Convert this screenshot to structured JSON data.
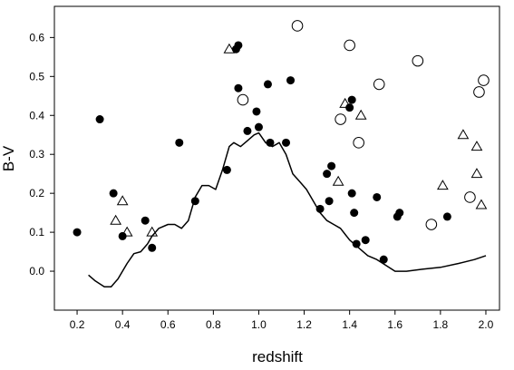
{
  "chart_data": {
    "type": "scatter",
    "title": "",
    "xlabel": "redshift",
    "ylabel": "B-V",
    "xlim": [
      0.1,
      2.06
    ],
    "ylim": [
      -0.1,
      0.68
    ],
    "xticks": [
      0.2,
      0.4,
      0.6,
      0.8,
      1.0,
      1.2,
      1.4,
      1.6,
      1.8,
      2.0
    ],
    "xtick_labels": [
      "0.2",
      "0.4",
      "0.6",
      "0.8",
      "1.0",
      "1.2",
      "1.4",
      "1.6",
      "1.8",
      "2.0"
    ],
    "yticks": [
      0.0,
      0.1,
      0.2,
      0.3,
      0.4,
      0.5,
      0.6
    ],
    "ytick_labels": [
      "0.0",
      "0.1",
      "0.2",
      "0.3",
      "0.4",
      "0.5",
      "0.6"
    ],
    "grid": false,
    "legend": "none",
    "series": [
      {
        "marker": "filled-circle",
        "points": [
          [
            0.2,
            0.1
          ],
          [
            0.3,
            0.39
          ],
          [
            0.36,
            0.2
          ],
          [
            0.4,
            0.09
          ],
          [
            0.5,
            0.13
          ],
          [
            0.53,
            0.06
          ],
          [
            0.65,
            0.33
          ],
          [
            0.72,
            0.18
          ],
          [
            0.86,
            0.26
          ],
          [
            0.9,
            0.57
          ],
          [
            0.91,
            0.58
          ],
          [
            0.91,
            0.47
          ],
          [
            0.95,
            0.36
          ],
          [
            0.99,
            0.41
          ],
          [
            1.0,
            0.37
          ],
          [
            1.04,
            0.48
          ],
          [
            1.05,
            0.33
          ],
          [
            1.12,
            0.33
          ],
          [
            1.14,
            0.49
          ],
          [
            1.27,
            0.16
          ],
          [
            1.3,
            0.25
          ],
          [
            1.31,
            0.18
          ],
          [
            1.32,
            0.27
          ],
          [
            1.4,
            0.42
          ],
          [
            1.41,
            0.44
          ],
          [
            1.41,
            0.2
          ],
          [
            1.42,
            0.15
          ],
          [
            1.43,
            0.07
          ],
          [
            1.47,
            0.08
          ],
          [
            1.52,
            0.19
          ],
          [
            1.55,
            0.03
          ],
          [
            1.61,
            0.14
          ],
          [
            1.62,
            0.15
          ],
          [
            1.83,
            0.14
          ]
        ]
      },
      {
        "marker": "open-circle",
        "points": [
          [
            0.93,
            0.44
          ],
          [
            1.17,
            0.63
          ],
          [
            1.36,
            0.39
          ],
          [
            1.4,
            0.58
          ],
          [
            1.44,
            0.33
          ],
          [
            1.53,
            0.48
          ],
          [
            1.7,
            0.54
          ],
          [
            1.76,
            0.12
          ],
          [
            1.93,
            0.19
          ],
          [
            1.97,
            0.46
          ],
          [
            1.99,
            0.49
          ]
        ]
      },
      {
        "marker": "open-triangle",
        "points": [
          [
            0.37,
            0.13
          ],
          [
            0.4,
            0.18
          ],
          [
            0.42,
            0.1
          ],
          [
            0.53,
            0.1
          ],
          [
            0.87,
            0.57
          ],
          [
            1.35,
            0.23
          ],
          [
            1.38,
            0.43
          ],
          [
            1.45,
            0.4
          ],
          [
            1.81,
            0.22
          ],
          [
            1.9,
            0.35
          ],
          [
            1.96,
            0.32
          ],
          [
            1.96,
            0.25
          ],
          [
            1.98,
            0.17
          ]
        ]
      },
      {
        "marker": "line",
        "points": [
          [
            0.25,
            -0.01
          ],
          [
            0.28,
            -0.025
          ],
          [
            0.32,
            -0.04
          ],
          [
            0.35,
            -0.04
          ],
          [
            0.38,
            -0.02
          ],
          [
            0.42,
            0.02
          ],
          [
            0.45,
            0.045
          ],
          [
            0.48,
            0.05
          ],
          [
            0.51,
            0.07
          ],
          [
            0.53,
            0.09
          ],
          [
            0.56,
            0.11
          ],
          [
            0.6,
            0.12
          ],
          [
            0.63,
            0.12
          ],
          [
            0.66,
            0.11
          ],
          [
            0.69,
            0.13
          ],
          [
            0.72,
            0.19
          ],
          [
            0.75,
            0.22
          ],
          [
            0.78,
            0.22
          ],
          [
            0.81,
            0.21
          ],
          [
            0.84,
            0.26
          ],
          [
            0.87,
            0.32
          ],
          [
            0.89,
            0.33
          ],
          [
            0.92,
            0.32
          ],
          [
            0.95,
            0.335
          ],
          [
            0.98,
            0.35
          ],
          [
            1.0,
            0.355
          ],
          [
            1.03,
            0.33
          ],
          [
            1.06,
            0.32
          ],
          [
            1.09,
            0.33
          ],
          [
            1.12,
            0.3
          ],
          [
            1.15,
            0.25
          ],
          [
            1.18,
            0.23
          ],
          [
            1.21,
            0.21
          ],
          [
            1.24,
            0.18
          ],
          [
            1.27,
            0.15
          ],
          [
            1.3,
            0.13
          ],
          [
            1.33,
            0.12
          ],
          [
            1.36,
            0.11
          ],
          [
            1.4,
            0.08
          ],
          [
            1.44,
            0.06
          ],
          [
            1.48,
            0.04
          ],
          [
            1.52,
            0.03
          ],
          [
            1.56,
            0.015
          ],
          [
            1.6,
            0.0
          ],
          [
            1.65,
            0.0
          ],
          [
            1.72,
            0.005
          ],
          [
            1.8,
            0.01
          ],
          [
            1.88,
            0.02
          ],
          [
            1.95,
            0.03
          ],
          [
            2.0,
            0.04
          ]
        ]
      }
    ]
  }
}
